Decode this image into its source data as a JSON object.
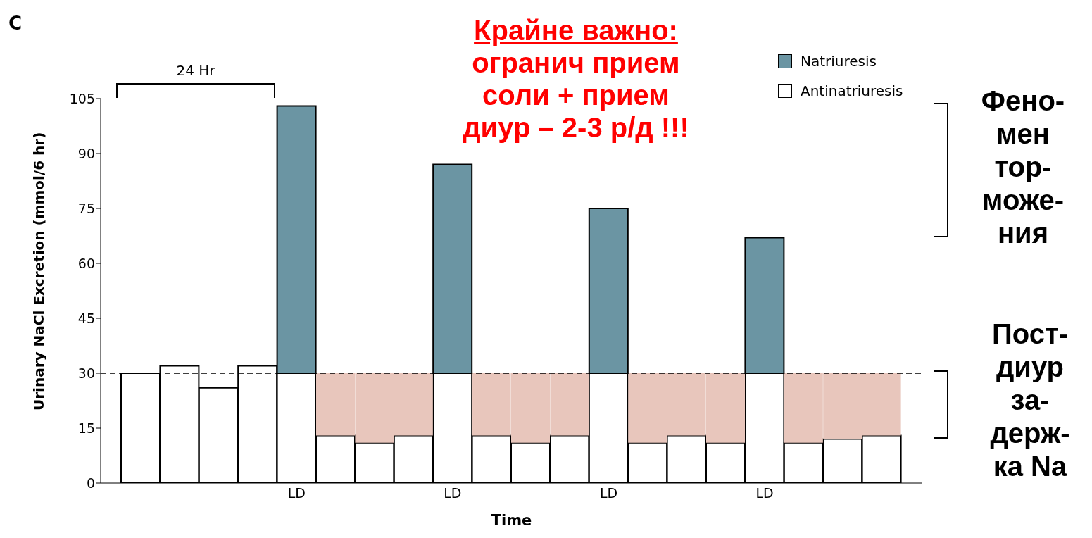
{
  "chart_data": {
    "type": "bar",
    "stacked": true,
    "categories": [
      null,
      null,
      null,
      null,
      "LD",
      null,
      null,
      null,
      "LD",
      null,
      null,
      null,
      "LD",
      null,
      null,
      null,
      "LD",
      null,
      null,
      null
    ],
    "series": [
      {
        "name": "Antinatriuresis",
        "color": "#ffffff",
        "values": [
          30,
          32,
          26,
          32,
          30,
          13,
          11,
          13,
          30,
          13,
          11,
          13,
          30,
          11,
          13,
          11,
          30,
          11,
          12,
          13
        ]
      },
      {
        "color": "#e8c6bc",
        "values": [
          null,
          null,
          null,
          null,
          null,
          17,
          19,
          17,
          null,
          17,
          19,
          17,
          null,
          19,
          17,
          19,
          null,
          19,
          18,
          17
        ]
      },
      {
        "name": "Natriuresis",
        "color": "#6b95a3",
        "values": [
          null,
          null,
          null,
          null,
          73,
          null,
          null,
          null,
          57,
          null,
          null,
          null,
          45,
          null,
          null,
          null,
          37,
          null,
          null,
          null
        ]
      }
    ],
    "ylim": [
      0,
      105
    ],
    "yticks": [
      0,
      15,
      30,
      45,
      60,
      75,
      90,
      105
    ],
    "xlabel": "Time",
    "ylabel": "Urinary NaCl Excretion (mmol/6 hr)",
    "legend": "top right",
    "grid": false,
    "ref_lines": [
      {
        "axis": "y",
        "value": 30,
        "line_style": "dashed",
        "color": "#000000"
      }
    ],
    "annotations": [
      "C",
      "24 Hr",
      "Крайне важно:",
      "огранич прием\nсоли + прием\nдиур – 2-3 р/д !!!",
      "Фено-\nмен\nтор-\nможе-\nния",
      "Пост-\nдиур\nза-\nдерж-\nка Na"
    ]
  }
}
